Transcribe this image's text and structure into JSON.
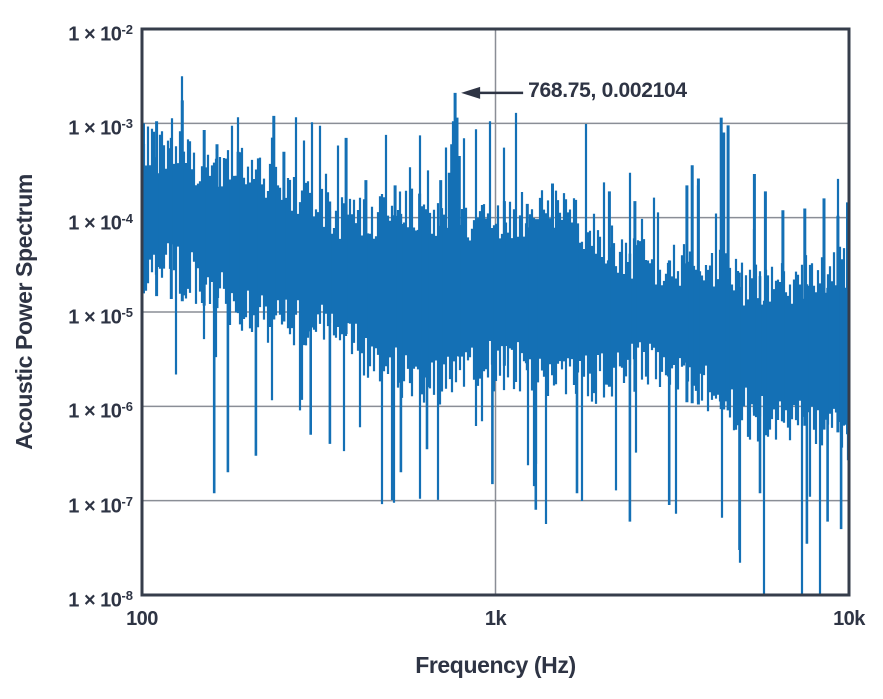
{
  "colors": {
    "series_blue": "#1470b5",
    "axis_text": "#2e3444",
    "gridline": "#8a8e96",
    "plot_border": "#363d4b",
    "background": "#ffffff"
  },
  "chart_data": {
    "type": "line",
    "title": "",
    "xlabel": "Frequency (Hz)",
    "ylabel": "Acoustic Power Spectrum",
    "xscale": "log",
    "yscale": "log",
    "xlim": [
      100,
      10000
    ],
    "ylim": [
      1e-08,
      0.01
    ],
    "grid": "decade gridlines on",
    "legend": "none",
    "x_ticks": [
      {
        "value": 100,
        "label": "100"
      },
      {
        "value": 1000,
        "label": "1k"
      },
      {
        "value": 10000,
        "label": "10k"
      }
    ],
    "y_ticks": [
      {
        "value": 0.01,
        "base": "1 × 10",
        "exp": "-2"
      },
      {
        "value": 0.001,
        "base": "1 × 10",
        "exp": "-3"
      },
      {
        "value": 0.0001,
        "base": "1 × 10",
        "exp": "-4"
      },
      {
        "value": 1e-05,
        "base": "1 × 10",
        "exp": "-5"
      },
      {
        "value": 1e-06,
        "base": "1 × 10",
        "exp": "-6"
      },
      {
        "value": 1e-07,
        "base": "1 × 10",
        "exp": "-7"
      },
      {
        "value": 1e-08,
        "base": "1 × 10",
        "exp": "-8"
      }
    ],
    "annotation": {
      "label": "768.75, 0.002104",
      "x_hz": 768.75,
      "y_value": 0.002104
    },
    "series": [
      {
        "name": "acoustic power spectrum",
        "color": "#1470b5",
        "seed": 20471,
        "noise_band": {
          "top_log10_at_100hz": -3.42,
          "top_log10_at_10khz": -4.72,
          "bottom_log10_at_100hz": -4.8,
          "bottom_log10_at_10khz": -6.3,
          "up_spike_probability": 0.1,
          "down_spike_probability": 0.08
        },
        "peaks_hz_value": [
          [
            101,
            0.001
          ],
          [
            110,
            0.00105
          ],
          [
            121,
            0.0007
          ],
          [
            130,
            0.00175
          ],
          [
            150,
            0.00085
          ],
          [
            163,
            0.0006
          ],
          [
            187,
            0.0005
          ],
          [
            236,
            0.0012
          ],
          [
            252,
            0.0005
          ],
          [
            378,
            0.0007
          ],
          [
            430,
            0.00025
          ],
          [
            520,
            0.00022
          ],
          [
            610,
            0.00018
          ],
          [
            700,
            0.00025
          ],
          [
            740,
            0.0003
          ],
          [
            752,
            0.0006
          ],
          [
            760,
            0.00105
          ],
          [
            768.75,
            0.002104
          ],
          [
            778,
            0.00115
          ],
          [
            790,
            0.00045
          ],
          [
            1060,
            0.00015
          ],
          [
            1230,
            0.00014
          ],
          [
            1450,
            0.00023
          ],
          [
            2100,
            0.00019
          ],
          [
            2480,
            0.00015
          ],
          [
            3480,
            0.00022
          ],
          [
            3600,
            0.00036
          ],
          [
            3750,
            0.00026
          ],
          [
            4350,
            0.00115
          ],
          [
            4420,
            0.0008
          ],
          [
            4550,
            0.00095
          ],
          [
            5400,
            0.00029
          ],
          [
            5800,
            0.00019
          ],
          [
            6500,
            0.00012
          ],
          [
            7500,
            0.000125
          ],
          [
            8500,
            0.00016
          ],
          [
            9300,
            0.000105
          ],
          [
            9900,
            0.000145
          ]
        ],
        "dips_hz_value": [
          [
            160,
            1.2e-07
          ],
          [
            175,
            2e-07
          ],
          [
            210,
            3e-07
          ],
          [
            300,
            5e-07
          ],
          [
            340,
            4e-07
          ],
          [
            540,
            2e-07
          ],
          [
            640,
            3.5e-07
          ],
          [
            980,
            1.5e-07
          ],
          [
            1300,
            8e-08
          ],
          [
            1700,
            1.2e-07
          ],
          [
            2400,
            6e-08
          ],
          [
            3100,
            9e-08
          ],
          [
            4900,
            3e-08
          ],
          [
            5600,
            1.2e-07
          ],
          [
            7600,
            3.5e-08
          ],
          [
            8700,
            6e-08
          ],
          [
            9500,
            5e-08
          ]
        ]
      }
    ]
  }
}
